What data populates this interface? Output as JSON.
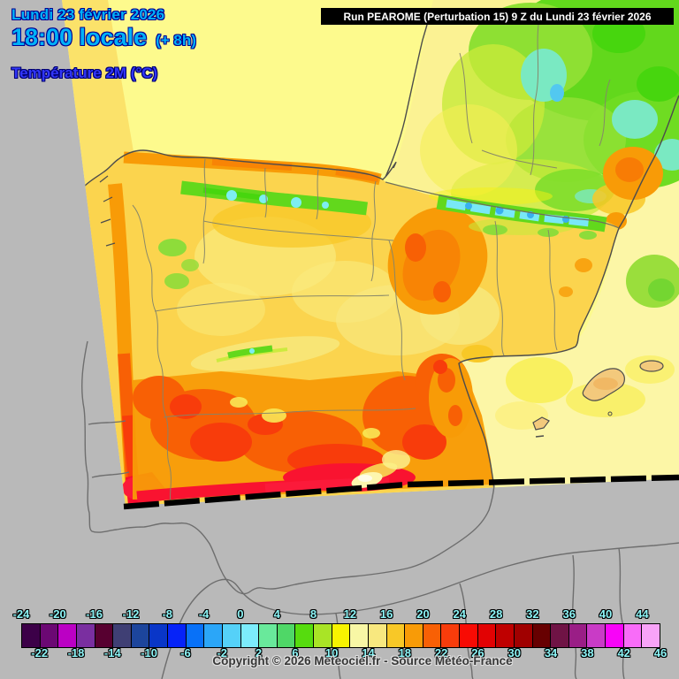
{
  "header": {
    "date_line": "Lundi 23 février 2026",
    "time_line": "18:00 locale",
    "time_offset": "(+ 8h)",
    "variable_line": "Température 2M (°C)",
    "date_time_color": "#00b2f8",
    "variable_color": "#3136f8"
  },
  "run_info": {
    "text": "Run PEAROME (Perturbation 15) 9 Z du Lundi 23 février 2026",
    "bg_color": "#000000",
    "text_color": "#ffffff"
  },
  "copyright": "Copyright © 2026 Meteociel.fr - Source Météo-France",
  "scale": {
    "unit": "°C",
    "min": -24,
    "max": 46,
    "step": 2,
    "top_labels": [
      "-24",
      "-20",
      "-16",
      "-12",
      "-8",
      "-4",
      "0",
      "4",
      "8",
      "12",
      "16",
      "20",
      "24",
      "28",
      "32",
      "36",
      "40",
      "44"
    ],
    "bottom_labels": [
      "-22",
      "-18",
      "-14",
      "-10",
      "-6",
      "-2",
      "2",
      "6",
      "10",
      "14",
      "18",
      "22",
      "26",
      "30",
      "34",
      "38",
      "42",
      "46"
    ],
    "cell_colors": [
      "#3c0048",
      "#6b0873",
      "#bb00c4",
      "#7a2fa0",
      "#570030",
      "#3f3f74",
      "#1c459c",
      "#0936c8",
      "#0623f8",
      "#0871f8",
      "#2ba6f8",
      "#55d1f8",
      "#7cecfc",
      "#69e99b",
      "#4fd767",
      "#56dc0e",
      "#a9e426",
      "#f8f400",
      "#f8f7a5",
      "#f8e87f",
      "#f8c827",
      "#f89b07",
      "#f86005",
      "#f83c0b",
      "#f80b04",
      "#e20203",
      "#bf0000",
      "#a00000",
      "#670001",
      "#6f1345",
      "#9a1e86",
      "#c93bc6",
      "#f804f8",
      "#f86cf8",
      "#f8a3f8"
    ],
    "label_color": "#8df6f8"
  },
  "map": {
    "outside_domain_color": "#b9b9b9",
    "sea_color": "#fdfa8d",
    "mediterranean_color": "#fcf6a6",
    "domain_border_color": "#000000",
    "coastline_color": "#4c4c4c"
  }
}
